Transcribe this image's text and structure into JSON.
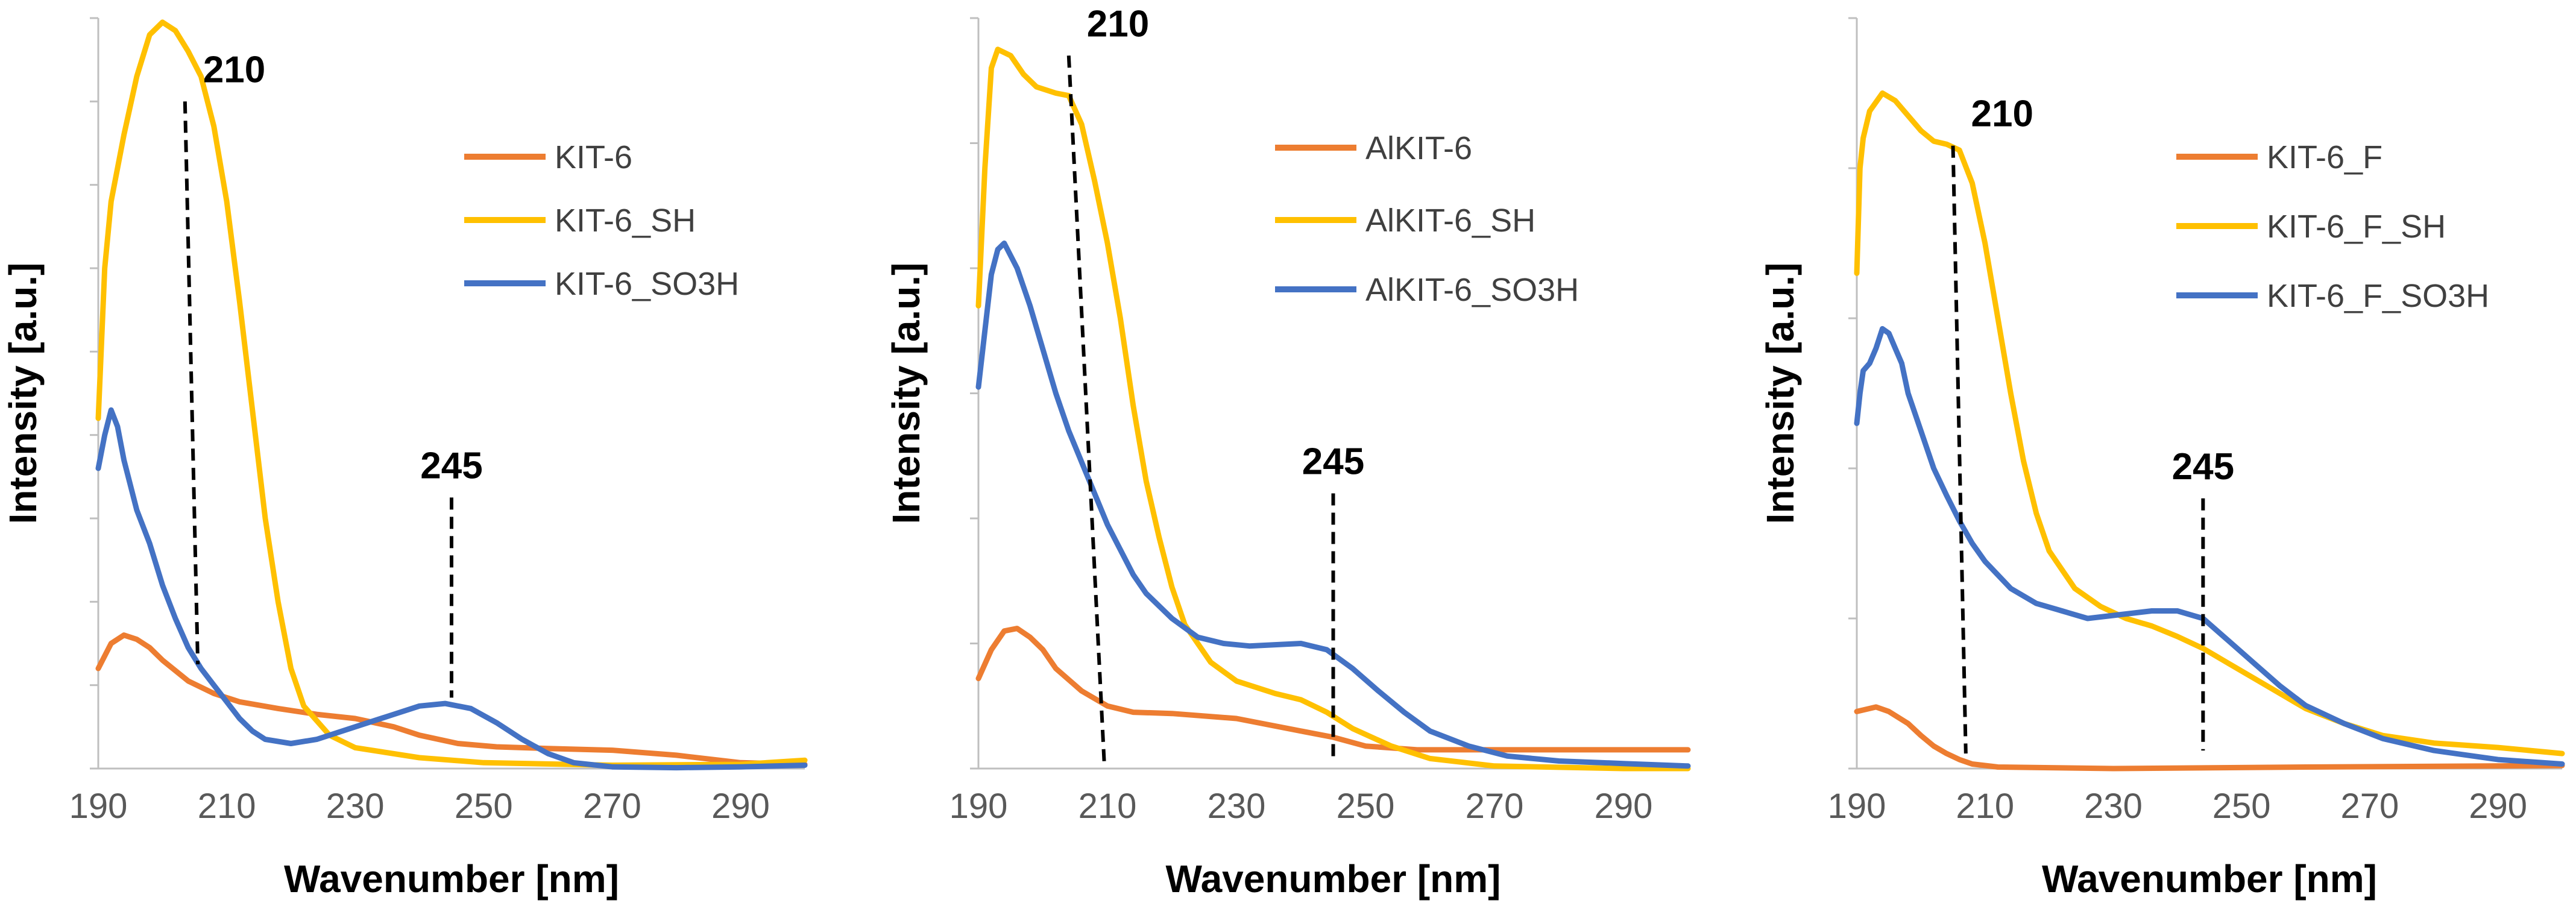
{
  "colors": {
    "orange": "#ED7D31",
    "yellow": "#FFC000",
    "blue": "#4472C4",
    "axis": "#BFBFBF"
  },
  "chart_data": [
    {
      "type": "line",
      "xlabel": "Wavenumber [nm]",
      "ylabel": "Intensity [a.u.]",
      "xlim": [
        190,
        300
      ],
      "ylim": [
        0,
        9
      ],
      "x_ticks": [
        "190",
        "210",
        "230",
        "250",
        "270",
        "290"
      ],
      "y_tick_count": 9,
      "series": [
        {
          "name": "KIT-6",
          "color": "#ED7D31",
          "points": [
            [
              190,
              1.2
            ],
            [
              192,
              1.5
            ],
            [
              194,
              1.6
            ],
            [
              196,
              1.55
            ],
            [
              198,
              1.45
            ],
            [
              200,
              1.3
            ],
            [
              204,
              1.05
            ],
            [
              208,
              0.9
            ],
            [
              212,
              0.8
            ],
            [
              218,
              0.72
            ],
            [
              224,
              0.65
            ],
            [
              230,
              0.6
            ],
            [
              236,
              0.5
            ],
            [
              240,
              0.4
            ],
            [
              246,
              0.3
            ],
            [
              252,
              0.26
            ],
            [
              260,
              0.24
            ],
            [
              270,
              0.22
            ],
            [
              280,
              0.16
            ],
            [
              290,
              0.07
            ],
            [
              300,
              0.05
            ]
          ]
        },
        {
          "name": "KIT-6_SH",
          "color": "#FFC000",
          "points": [
            [
              190,
              4.2
            ],
            [
              191,
              6.0
            ],
            [
              192,
              6.8
            ],
            [
              194,
              7.6
            ],
            [
              196,
              8.3
            ],
            [
              198,
              8.8
            ],
            [
              200,
              8.95
            ],
            [
              202,
              8.85
            ],
            [
              204,
              8.6
            ],
            [
              206,
              8.3
            ],
            [
              208,
              7.7
            ],
            [
              210,
              6.8
            ],
            [
              212,
              5.6
            ],
            [
              214,
              4.3
            ],
            [
              216,
              3.0
            ],
            [
              218,
              2.0
            ],
            [
              220,
              1.2
            ],
            [
              222,
              0.75
            ],
            [
              226,
              0.4
            ],
            [
              230,
              0.25
            ],
            [
              240,
              0.13
            ],
            [
              250,
              0.07
            ],
            [
              270,
              0.04
            ],
            [
              290,
              0.05
            ],
            [
              300,
              0.1
            ]
          ]
        },
        {
          "name": "KIT-6_SO3H",
          "color": "#4472C4",
          "points": [
            [
              190,
              3.6
            ],
            [
              191,
              4.0
            ],
            [
              192,
              4.3
            ],
            [
              193,
              4.1
            ],
            [
              194,
              3.7
            ],
            [
              196,
              3.1
            ],
            [
              198,
              2.7
            ],
            [
              200,
              2.2
            ],
            [
              202,
              1.8
            ],
            [
              204,
              1.45
            ],
            [
              206,
              1.2
            ],
            [
              208,
              1.0
            ],
            [
              210,
              0.8
            ],
            [
              212,
              0.6
            ],
            [
              214,
              0.45
            ],
            [
              216,
              0.35
            ],
            [
              220,
              0.3
            ],
            [
              224,
              0.35
            ],
            [
              230,
              0.5
            ],
            [
              236,
              0.65
            ],
            [
              240,
              0.75
            ],
            [
              244,
              0.78
            ],
            [
              248,
              0.72
            ],
            [
              252,
              0.55
            ],
            [
              256,
              0.35
            ],
            [
              260,
              0.18
            ],
            [
              264,
              0.07
            ],
            [
              270,
              0.02
            ],
            [
              280,
              0.01
            ],
            [
              290,
              0.02
            ],
            [
              300,
              0.04
            ]
          ]
        }
      ],
      "annotations": [
        {
          "label": "210",
          "x_top": 203.5,
          "y_top": 8.0,
          "x_bottom": 205.5,
          "y_bottom": 1.25
        },
        {
          "label": "245",
          "x_top": 245,
          "y_top": 3.25,
          "x_bottom": 245,
          "y_bottom": 0.85
        }
      ]
    },
    {
      "type": "line",
      "xlabel": "Wavenumber [nm]",
      "ylabel": "Intensity [a.u.]",
      "xlim": [
        190,
        300
      ],
      "ylim": [
        0,
        6
      ],
      "x_ticks": [
        "190",
        "210",
        "230",
        "250",
        "270",
        "290"
      ],
      "y_tick_count": 6,
      "series": [
        {
          "name": "AlKIT-6",
          "color": "#ED7D31",
          "points": [
            [
              190,
              0.72
            ],
            [
              192,
              0.95
            ],
            [
              194,
              1.1
            ],
            [
              196,
              1.12
            ],
            [
              198,
              1.05
            ],
            [
              200,
              0.95
            ],
            [
              202,
              0.8
            ],
            [
              206,
              0.62
            ],
            [
              210,
              0.5
            ],
            [
              214,
              0.45
            ],
            [
              220,
              0.44
            ],
            [
              230,
              0.4
            ],
            [
              240,
              0.3
            ],
            [
              245,
              0.25
            ],
            [
              250,
              0.18
            ],
            [
              258,
              0.15
            ],
            [
              270,
              0.15
            ],
            [
              290,
              0.15
            ],
            [
              300,
              0.15
            ]
          ]
        },
        {
          "name": "AlKIT-6_SH",
          "color": "#FFC000",
          "points": [
            [
              190,
              3.7
            ],
            [
              191,
              4.8
            ],
            [
              192,
              5.6
            ],
            [
              193,
              5.75
            ],
            [
              195,
              5.7
            ],
            [
              197,
              5.55
            ],
            [
              199,
              5.45
            ],
            [
              202,
              5.4
            ],
            [
              204,
              5.38
            ],
            [
              206,
              5.15
            ],
            [
              208,
              4.7
            ],
            [
              210,
              4.2
            ],
            [
              212,
              3.6
            ],
            [
              214,
              2.9
            ],
            [
              216,
              2.3
            ],
            [
              218,
              1.85
            ],
            [
              220,
              1.45
            ],
            [
              222,
              1.15
            ],
            [
              226,
              0.85
            ],
            [
              230,
              0.7
            ],
            [
              236,
              0.6
            ],
            [
              240,
              0.55
            ],
            [
              244,
              0.45
            ],
            [
              248,
              0.32
            ],
            [
              254,
              0.18
            ],
            [
              260,
              0.08
            ],
            [
              270,
              0.02
            ],
            [
              290,
              0.0
            ],
            [
              300,
              0.0
            ]
          ]
        },
        {
          "name": "AlKIT-6_SO3H",
          "color": "#4472C4",
          "points": [
            [
              190,
              3.05
            ],
            [
              191,
              3.5
            ],
            [
              192,
              3.95
            ],
            [
              193,
              4.15
            ],
            [
              194,
              4.2
            ],
            [
              196,
              4.0
            ],
            [
              198,
              3.7
            ],
            [
              200,
              3.35
            ],
            [
              202,
              3.0
            ],
            [
              204,
              2.7
            ],
            [
              206,
              2.45
            ],
            [
              208,
              2.2
            ],
            [
              210,
              1.95
            ],
            [
              212,
              1.75
            ],
            [
              214,
              1.55
            ],
            [
              216,
              1.4
            ],
            [
              220,
              1.2
            ],
            [
              224,
              1.05
            ],
            [
              228,
              1.0
            ],
            [
              232,
              0.98
            ],
            [
              236,
              0.99
            ],
            [
              240,
              1.0
            ],
            [
              244,
              0.95
            ],
            [
              248,
              0.8
            ],
            [
              252,
              0.62
            ],
            [
              256,
              0.45
            ],
            [
              260,
              0.3
            ],
            [
              266,
              0.18
            ],
            [
              272,
              0.1
            ],
            [
              280,
              0.06
            ],
            [
              290,
              0.04
            ],
            [
              300,
              0.02
            ]
          ]
        }
      ],
      "annotations": [
        {
          "label": "210",
          "x_top": 204,
          "y_top": 5.7,
          "x_bottom": 209.5,
          "y_bottom": 0.05
        },
        {
          "label": "245",
          "x_top": 245,
          "y_top": 2.2,
          "x_bottom": 245,
          "y_bottom": 0.05
        }
      ]
    },
    {
      "type": "line",
      "xlabel": "Wavenumber [nm]",
      "ylabel": "Intensity [a.u.]",
      "xlim": [
        190,
        300
      ],
      "ylim": [
        0,
        5
      ],
      "x_ticks": [
        "190",
        "210",
        "230",
        "250",
        "270",
        "290"
      ],
      "y_tick_count": 5,
      "series": [
        {
          "name": "KIT-6_F",
          "color": "#ED7D31",
          "points": [
            [
              190,
              0.38
            ],
            [
              192,
              0.4
            ],
            [
              193,
              0.41
            ],
            [
              195,
              0.38
            ],
            [
              198,
              0.3
            ],
            [
              200,
              0.22
            ],
            [
              202,
              0.15
            ],
            [
              204,
              0.1
            ],
            [
              206,
              0.06
            ],
            [
              208,
              0.03
            ],
            [
              212,
              0.01
            ],
            [
              230,
              0.0
            ],
            [
              260,
              0.01
            ],
            [
              300,
              0.02
            ]
          ]
        },
        {
          "name": "KIT-6_F_SH",
          "color": "#FFC000",
          "points": [
            [
              190,
              3.3
            ],
            [
              190.5,
              4.0
            ],
            [
              191,
              4.2
            ],
            [
              192,
              4.38
            ],
            [
              194,
              4.5
            ],
            [
              196,
              4.45
            ],
            [
              198,
              4.35
            ],
            [
              200,
              4.25
            ],
            [
              202,
              4.18
            ],
            [
              204,
              4.16
            ],
            [
              206,
              4.12
            ],
            [
              208,
              3.9
            ],
            [
              210,
              3.5
            ],
            [
              212,
              3.0
            ],
            [
              214,
              2.5
            ],
            [
              216,
              2.05
            ],
            [
              218,
              1.7
            ],
            [
              220,
              1.45
            ],
            [
              224,
              1.2
            ],
            [
              228,
              1.08
            ],
            [
              232,
              1.0
            ],
            [
              236,
              0.95
            ],
            [
              240,
              0.88
            ],
            [
              244,
              0.8
            ],
            [
              248,
              0.7
            ],
            [
              252,
              0.6
            ],
            [
              256,
              0.5
            ],
            [
              260,
              0.4
            ],
            [
              266,
              0.3
            ],
            [
              272,
              0.22
            ],
            [
              280,
              0.17
            ],
            [
              290,
              0.14
            ],
            [
              300,
              0.1
            ]
          ]
        },
        {
          "name": "KIT-6_F_SO3H",
          "color": "#4472C4",
          "points": [
            [
              190,
              2.3
            ],
            [
              190.5,
              2.5
            ],
            [
              191,
              2.65
            ],
            [
              192,
              2.7
            ],
            [
              193,
              2.8
            ],
            [
              194,
              2.93
            ],
            [
              195,
              2.9
            ],
            [
              196,
              2.8
            ],
            [
              197,
              2.7
            ],
            [
              198,
              2.5
            ],
            [
              200,
              2.25
            ],
            [
              202,
              2.0
            ],
            [
              204,
              1.82
            ],
            [
              206,
              1.65
            ],
            [
              208,
              1.5
            ],
            [
              210,
              1.38
            ],
            [
              214,
              1.2
            ],
            [
              218,
              1.1
            ],
            [
              222,
              1.05
            ],
            [
              226,
              1.0
            ],
            [
              230,
              1.02
            ],
            [
              236,
              1.05
            ],
            [
              240,
              1.05
            ],
            [
              244,
              1.0
            ],
            [
              248,
              0.85
            ],
            [
              252,
              0.7
            ],
            [
              256,
              0.55
            ],
            [
              260,
              0.42
            ],
            [
              266,
              0.3
            ],
            [
              272,
              0.2
            ],
            [
              280,
              0.12
            ],
            [
              290,
              0.06
            ],
            [
              300,
              0.03
            ]
          ]
        }
      ],
      "annotations": [
        {
          "label": "210",
          "x_top": 205,
          "y_top": 4.15,
          "x_bottom": 207,
          "y_bottom": 0.1
        },
        {
          "label": "245",
          "x_top": 244,
          "y_top": 1.8,
          "x_bottom": 244,
          "y_bottom": 0.12
        }
      ]
    }
  ]
}
